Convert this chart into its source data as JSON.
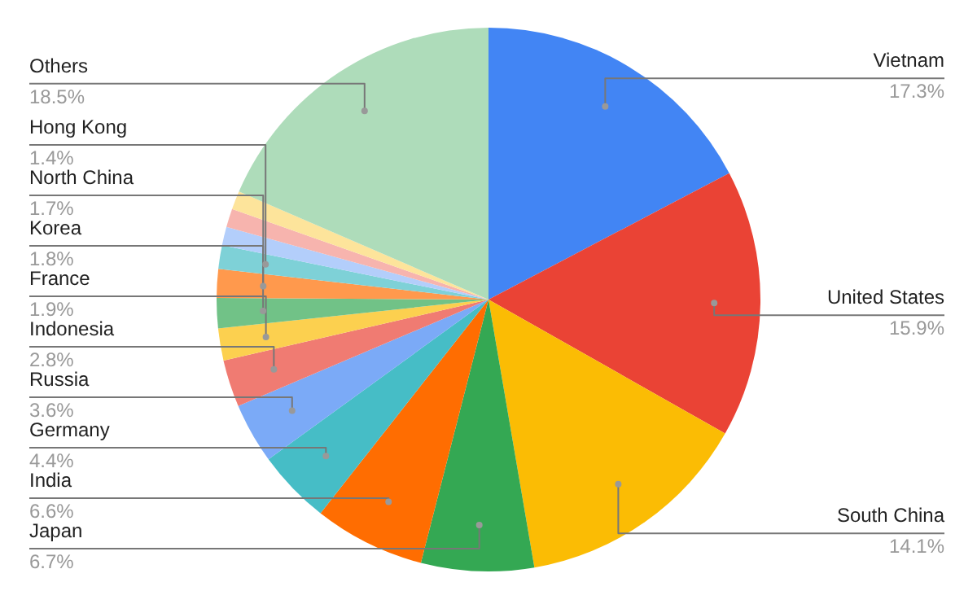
{
  "chart_data": {
    "type": "pie",
    "categories": [
      "Vietnam",
      "United States",
      "South China",
      "Japan",
      "India",
      "Germany",
      "Russia",
      "Indonesia",
      "France",
      "Korea",
      "North China",
      "Hong Kong",
      null,
      null,
      null,
      "Others"
    ],
    "values": [
      17.3,
      15.9,
      14.1,
      6.7,
      6.6,
      4.4,
      3.6,
      2.8,
      1.9,
      1.8,
      1.7,
      1.4,
      1.1,
      1.1,
      1.1,
      18.5
    ],
    "value_labels": [
      "17.3%",
      "15.9%",
      "14.1%",
      "6.7%",
      "6.6%",
      "4.4%",
      "3.6%",
      "2.8%",
      "1.9%",
      "1.8%",
      "1.7%",
      "1.4%",
      null,
      null,
      null,
      "18.5%"
    ],
    "colors": [
      "#4285f4",
      "#ea4335",
      "#fbbc04",
      "#34a853",
      "#ff6d01",
      "#46bdc6",
      "#7baaf7",
      "#f07b72",
      "#fcd04f",
      "#71c287",
      "#ff994d",
      "#7ed1d7",
      "#b3cefb",
      "#f7b4ae",
      "#fde49b",
      "#aedcba"
    ],
    "legend": false
  }
}
